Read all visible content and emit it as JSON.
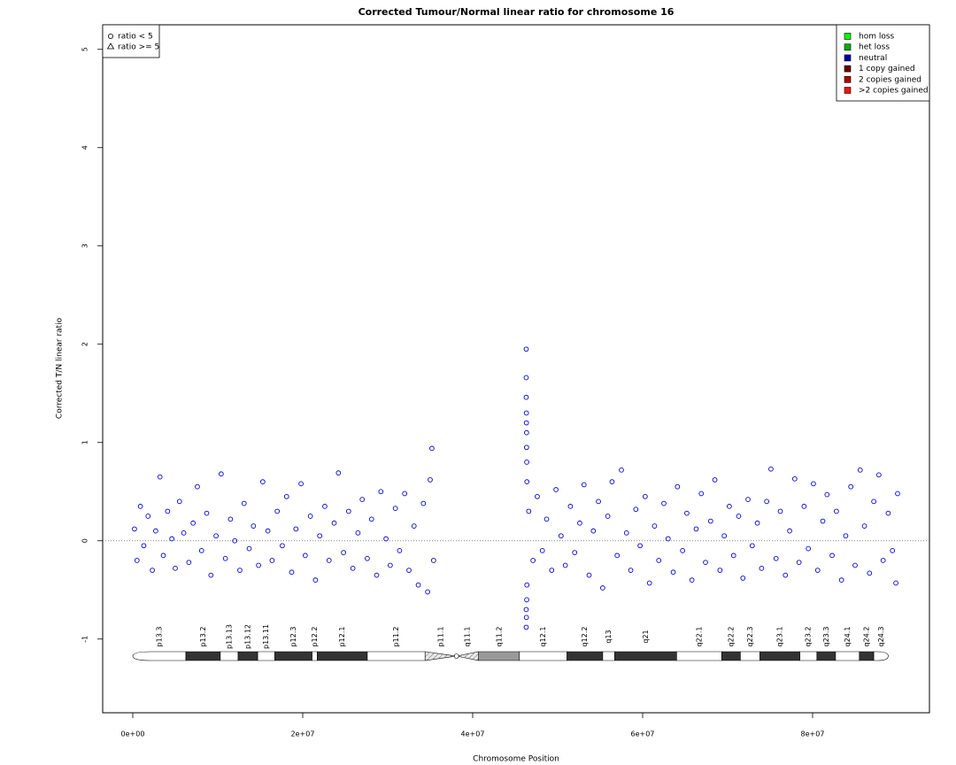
{
  "chart_data": {
    "type": "scatter",
    "title": "Corrected Tumour/Normal linear ratio for chromosome  16",
    "xlabel": "Chromosome Position",
    "ylabel": "Corrected T/N linear ratio",
    "xlim": [
      -3540000,
      93750000
    ],
    "ylim": [
      -1.75,
      5.25
    ],
    "xticks": [
      {
        "value": 0,
        "label": "0e+00"
      },
      {
        "value": 20000000,
        "label": "2e+07"
      },
      {
        "value": 40000000,
        "label": "4e+07"
      },
      {
        "value": 60000000,
        "label": "6e+07"
      },
      {
        "value": 80000000,
        "label": "8e+07"
      }
    ],
    "yticks": [
      -1,
      0,
      1,
      2,
      3,
      4,
      5
    ],
    "reference_line": 0,
    "shape_legend": [
      "ratio < 5",
      "ratio >= 5"
    ],
    "legend": [
      {
        "label": "hom loss",
        "color": "#00ff00"
      },
      {
        "label": "het loss",
        "color": "#00b000"
      },
      {
        "label": "neutral",
        "color": "#0000a8"
      },
      {
        "label": "1 copy gained",
        "color": "#6a0000"
      },
      {
        "label": "2 copies gained",
        "color": "#b00000"
      },
      {
        "label": ">2 copies gained",
        "color": "#ff1010"
      }
    ],
    "series": [
      {
        "name": "neutral",
        "color": "#0000cc",
        "x": [
          200000,
          500000,
          900000,
          1300000,
          1800000,
          2300000,
          2700000,
          3200000,
          3600000,
          4100000,
          4600000,
          5000000,
          5500000,
          6000000,
          6600000,
          7100000,
          7600000,
          8100000,
          8700000,
          9200000,
          9800000,
          10400000,
          10900000,
          11500000,
          12000000,
          12600000,
          13100000,
          13700000,
          14200000,
          14800000,
          15300000,
          15900000,
          16400000,
          17000000,
          17600000,
          18100000,
          18700000,
          19200000,
          19800000,
          20300000,
          20900000,
          21500000,
          22000000,
          22600000,
          23100000,
          23700000,
          24200000,
          24800000,
          25400000,
          25900000,
          26500000,
          27000000,
          27600000,
          28100000,
          28700000,
          29200000,
          29800000,
          30300000,
          30900000,
          31400000,
          32000000,
          32500000,
          33100000,
          33600000,
          34200000,
          34700000,
          35000000,
          35200000,
          35400000,
          46300000,
          46300000,
          46300000,
          46320000,
          46320000,
          46340000,
          46340000,
          46360000,
          46360000,
          46300000,
          46300000,
          46320000,
          46380000,
          46380000,
          46600000,
          47100000,
          47600000,
          48200000,
          48700000,
          49300000,
          49800000,
          50400000,
          50900000,
          51500000,
          52000000,
          52600000,
          53100000,
          53700000,
          54200000,
          54800000,
          55300000,
          55900000,
          56400000,
          57000000,
          57500000,
          58100000,
          58600000,
          59200000,
          59700000,
          60300000,
          60800000,
          61400000,
          61900000,
          62500000,
          63000000,
          63600000,
          64100000,
          64700000,
          65200000,
          65800000,
          66300000,
          66900000,
          67400000,
          68000000,
          68500000,
          69100000,
          69600000,
          70200000,
          70700000,
          71300000,
          71800000,
          72400000,
          72900000,
          73500000,
          74000000,
          74600000,
          75100000,
          75700000,
          76200000,
          76800000,
          77300000,
          77900000,
          78400000,
          79000000,
          79500000,
          80100000,
          80600000,
          81200000,
          81700000,
          82300000,
          82800000,
          83400000,
          83900000,
          84500000,
          85000000,
          85600000,
          86100000,
          86700000,
          87200000,
          87800000,
          88300000,
          88900000,
          89400000,
          89800000,
          90000000
        ],
        "values": [
          0.12,
          -0.2,
          0.35,
          -0.05,
          0.25,
          -0.3,
          0.1,
          0.65,
          -0.15,
          0.3,
          0.02,
          -0.28,
          0.4,
          0.08,
          -0.22,
          0.18,
          0.55,
          -0.1,
          0.28,
          -0.35,
          0.05,
          0.68,
          -0.18,
          0.22,
          0,
          -0.3,
          0.38,
          -0.08,
          0.15,
          -0.25,
          0.6,
          0.1,
          -0.2,
          0.3,
          -0.05,
          0.45,
          -0.32,
          0.12,
          0.58,
          -0.15,
          0.25,
          -0.4,
          0.05,
          0.35,
          -0.2,
          0.18,
          0.69,
          -0.12,
          0.3,
          -0.28,
          0.08,
          0.42,
          -0.18,
          0.22,
          -0.35,
          0.5,
          0.02,
          -0.25,
          0.33,
          -0.1,
          0.48,
          -0.3,
          0.15,
          -0.45,
          0.38,
          -0.52,
          0.62,
          0.94,
          -0.2,
          1.95,
          1.66,
          1.46,
          1.3,
          1.2,
          1.1,
          0.95,
          0.8,
          -0.6,
          -0.7,
          -0.88,
          -0.78,
          0.6,
          -0.45,
          0.3,
          -0.2,
          0.45,
          -0.1,
          0.22,
          -0.3,
          0.52,
          0.05,
          -0.25,
          0.35,
          -0.12,
          0.18,
          0.57,
          -0.35,
          0.1,
          0.4,
          -0.48,
          0.25,
          0.6,
          -0.15,
          0.72,
          0.08,
          -0.3,
          0.32,
          -0.05,
          0.45,
          -0.43,
          0.15,
          -0.2,
          0.38,
          0.02,
          -0.32,
          0.55,
          -0.1,
          0.28,
          -0.4,
          0.12,
          0.48,
          -0.22,
          0.2,
          0.62,
          -0.3,
          0.05,
          0.35,
          -0.15,
          0.25,
          -0.38,
          0.42,
          -0.05,
          0.18,
          -0.28,
          0.4,
          0.73,
          -0.18,
          0.3,
          -0.35,
          0.1,
          0.63,
          -0.22,
          0.35,
          -0.08,
          0.58,
          -0.3,
          0.2,
          0.47,
          -0.15,
          0.3,
          -0.4,
          0.05,
          0.55,
          -0.25,
          0.72,
          0.15,
          -0.33,
          0.4,
          0.67,
          -0.2,
          0.28,
          -0.1,
          -0.43,
          0.48
        ]
      }
    ],
    "centromere": 38100000,
    "ideogram": [
      {
        "name": "p13.3",
        "start": 0,
        "end": 6250000,
        "color": "#ffffff"
      },
      {
        "name": "p13.2",
        "start": 6250000,
        "end": 10300000,
        "color": "#333333"
      },
      {
        "name": "p13.13",
        "start": 10300000,
        "end": 12400000,
        "color": "#ffffff"
      },
      {
        "name": "p13.12",
        "start": 12400000,
        "end": 14700000,
        "color": "#333333"
      },
      {
        "name": "p13.11",
        "start": 14700000,
        "end": 16700000,
        "color": "#ffffff"
      },
      {
        "name": "p12.3",
        "start": 16700000,
        "end": 21100000,
        "color": "#333333"
      },
      {
        "name": "p12.2",
        "start": 21100000,
        "end": 21700000,
        "color": "#ffffff"
      },
      {
        "name": "p12.1",
        "start": 21700000,
        "end": 27600000,
        "color": "#333333"
      },
      {
        "name": "p11.2",
        "start": 27600000,
        "end": 34400000,
        "color": "#ffffff"
      },
      {
        "name": "p11.1",
        "start": 34400000,
        "end": 38100000,
        "color": "#e8e8e8"
      },
      {
        "name": "q11.1",
        "start": 38100000,
        "end": 40700000,
        "color": "#e8e8e8"
      },
      {
        "name": "q11.2",
        "start": 40700000,
        "end": 45500000,
        "color": "#999999"
      },
      {
        "name": "q12.1",
        "start": 45500000,
        "end": 51100000,
        "color": "#ffffff"
      },
      {
        "name": "q12.2",
        "start": 51100000,
        "end": 55300000,
        "color": "#333333"
      },
      {
        "name": "q13",
        "start": 55300000,
        "end": 56700000,
        "color": "#ffffff"
      },
      {
        "name": "q21",
        "start": 56700000,
        "end": 64000000,
        "color": "#333333"
      },
      {
        "name": "q22.1",
        "start": 64000000,
        "end": 69300000,
        "color": "#ffffff"
      },
      {
        "name": "q22.2",
        "start": 69300000,
        "end": 71500000,
        "color": "#333333"
      },
      {
        "name": "q22.3",
        "start": 71500000,
        "end": 73800000,
        "color": "#ffffff"
      },
      {
        "name": "q23.1",
        "start": 73800000,
        "end": 78500000,
        "color": "#333333"
      },
      {
        "name": "q23.2",
        "start": 78500000,
        "end": 80500000,
        "color": "#ffffff"
      },
      {
        "name": "q23.3",
        "start": 80500000,
        "end": 82700000,
        "color": "#333333"
      },
      {
        "name": "q24.1",
        "start": 82700000,
        "end": 85500000,
        "color": "#ffffff"
      },
      {
        "name": "q24.2",
        "start": 85500000,
        "end": 87200000,
        "color": "#333333"
      },
      {
        "name": "q24.3",
        "start": 87200000,
        "end": 88900000,
        "color": "#ffffff"
      }
    ]
  }
}
